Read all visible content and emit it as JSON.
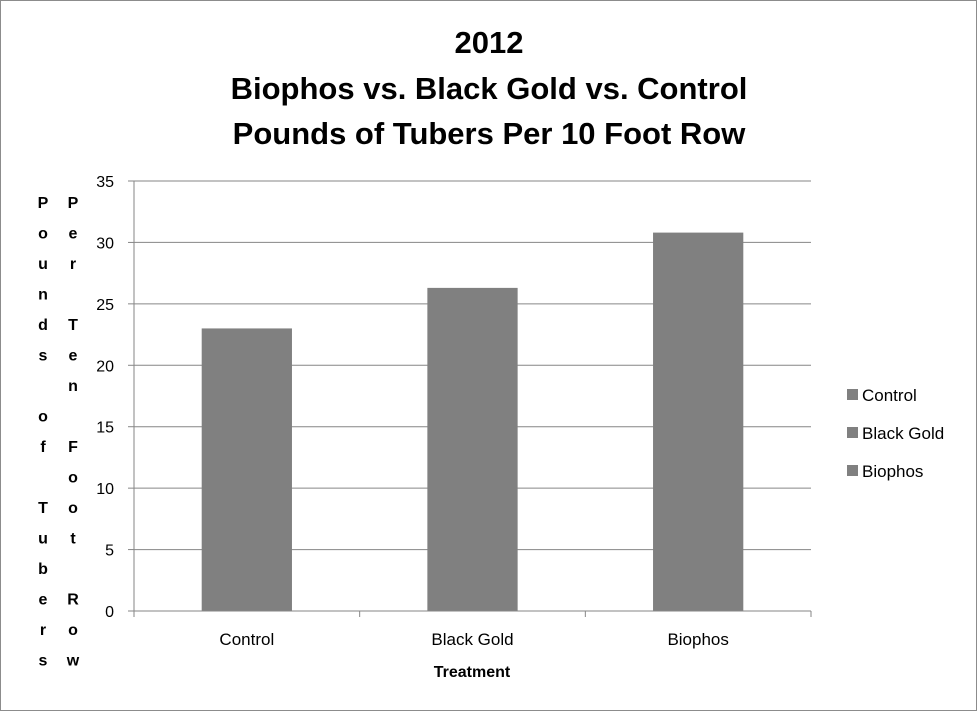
{
  "chart_data": {
    "type": "bar",
    "title_lines": [
      "2012",
      "Biophos vs. Black Gold vs. Control",
      "Pounds of Tubers Per 10 Foot Row"
    ],
    "categories": [
      "Control",
      "Black Gold",
      "Biophos"
    ],
    "series": [
      {
        "values": [
          23,
          26.3,
          30.8
        ]
      }
    ],
    "xlabel": "Treatment",
    "ylabel_columns": [
      "Pounds of Tubers",
      "Per Ten Foot Row"
    ],
    "ylim": [
      0,
      35
    ],
    "ytick_step": 5,
    "yticks": [
      "0",
      "5",
      "10",
      "15",
      "20",
      "25",
      "30",
      "35"
    ],
    "grid": true,
    "legend": {
      "placement": "right",
      "entries": [
        "Control",
        "Black Gold",
        "Biophos"
      ]
    },
    "bar_color": "#808080",
    "grid_color": "#868686"
  }
}
